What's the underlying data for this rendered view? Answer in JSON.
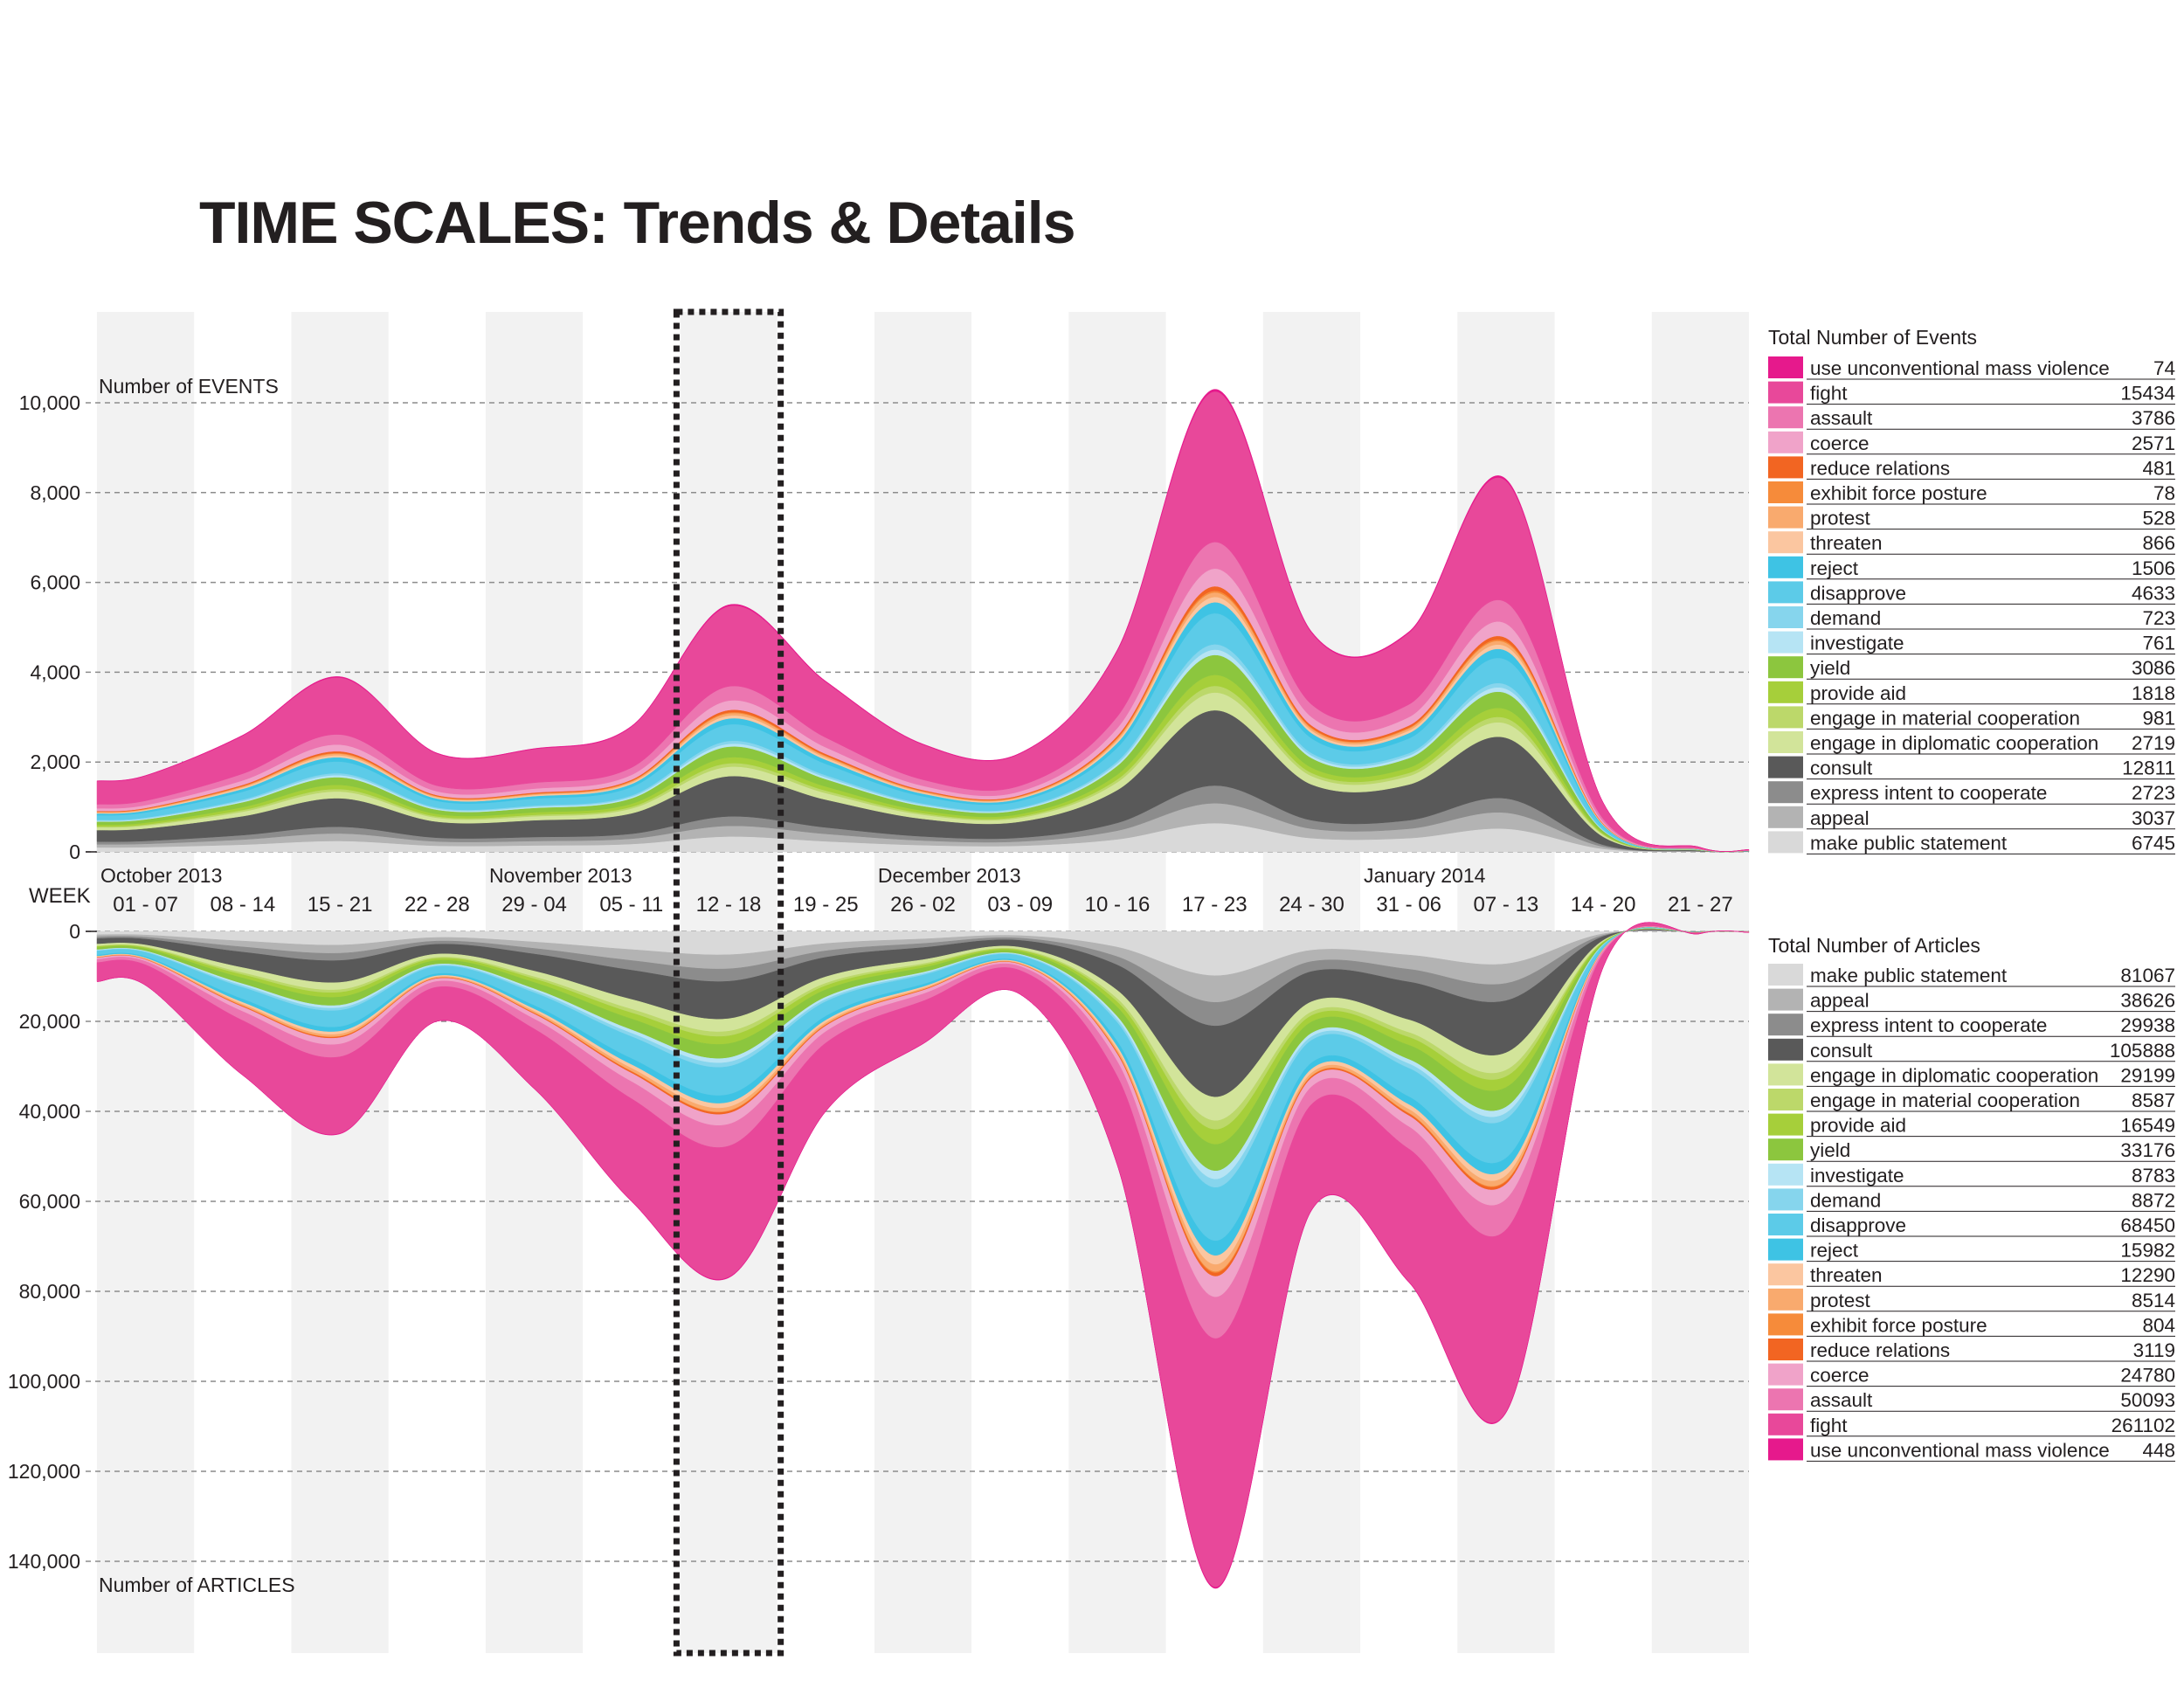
{
  "title": "TIME SCALES: Trends & Details",
  "chart_data": {
    "type": "area",
    "subtype": "streamgraph",
    "weeks": [
      "01 - 07",
      "08 - 14",
      "15 - 21",
      "22 - 28",
      "29 - 04",
      "05 - 11",
      "12 - 18",
      "19 - 25",
      "26 - 02",
      "03 - 09",
      "10 - 16",
      "17 - 23",
      "24 - 30",
      "31 - 06",
      "07 - 13",
      "14 - 20",
      "21 - 27"
    ],
    "months": [
      {
        "label": "October 2013",
        "week_index": 0
      },
      {
        "label": "November 2013",
        "week_index": 4
      },
      {
        "label": "December 2013",
        "week_index": 8
      },
      {
        "label": "January 2014",
        "week_index": 13
      }
    ],
    "week_label": "WEEK",
    "highlight_week_index": 6,
    "categories": [
      {
        "name": "use unconventional mass violence",
        "color": "#e6198c",
        "events_total": 74,
        "articles_total": 448,
        "events_share": 0.005,
        "articles_share": 0.002
      },
      {
        "name": "fight",
        "color": "#e8489a",
        "events_total": 15434,
        "articles_total": 261102,
        "events_share": 0.34,
        "articles_share": 0.42
      },
      {
        "name": "assault",
        "color": "#ec75b0",
        "events_total": 3786,
        "articles_total": 50093,
        "events_share": 0.06,
        "articles_share": 0.07
      },
      {
        "name": "coerce",
        "color": "#f0a3c9",
        "events_total": 2571,
        "articles_total": 24780,
        "events_share": 0.04,
        "articles_share": 0.035
      },
      {
        "name": "reduce relations",
        "color": "#f26522",
        "events_total": 481,
        "articles_total": 3119,
        "events_share": 0.01,
        "articles_share": 0.006
      },
      {
        "name": "exhibit force posture",
        "color": "#f68b3a",
        "events_total": 78,
        "articles_total": 804,
        "events_share": 0.004,
        "articles_share": 0.002
      },
      {
        "name": "protest",
        "color": "#f9aa6e",
        "events_total": 528,
        "articles_total": 8514,
        "events_share": 0.01,
        "articles_share": 0.012
      },
      {
        "name": "threaten",
        "color": "#fbc6a0",
        "events_total": 866,
        "articles_total": 12290,
        "events_share": 0.012,
        "articles_share": 0.015
      },
      {
        "name": "reject",
        "color": "#3ec3e4",
        "events_total": 1506,
        "articles_total": 15982,
        "events_share": 0.025,
        "articles_share": 0.025
      },
      {
        "name": "disapprove",
        "color": "#5ccbe8",
        "events_total": 4633,
        "articles_total": 68450,
        "events_share": 0.07,
        "articles_share": 0.09
      },
      {
        "name": "demand",
        "color": "#86d5ed",
        "events_total": 723,
        "articles_total": 8872,
        "events_share": 0.012,
        "articles_share": 0.014
      },
      {
        "name": "investigate",
        "color": "#b6e4f4",
        "events_total": 761,
        "articles_total": 8783,
        "events_share": 0.012,
        "articles_share": 0.014
      },
      {
        "name": "yield",
        "color": "#8cc63e",
        "events_total": 3086,
        "articles_total": 33176,
        "events_share": 0.045,
        "articles_share": 0.045
      },
      {
        "name": "provide aid",
        "color": "#a6cf3a",
        "events_total": 1818,
        "articles_total": 16549,
        "events_share": 0.025,
        "articles_share": 0.025
      },
      {
        "name": "engage in material cooperation",
        "color": "#bcd86a",
        "events_total": 981,
        "articles_total": 8587,
        "events_share": 0.015,
        "articles_share": 0.015
      },
      {
        "name": "engage in diplomatic cooperation",
        "color": "#d2e49a",
        "events_total": 2719,
        "articles_total": 29199,
        "events_share": 0.04,
        "articles_share": 0.04
      },
      {
        "name": "consult",
        "color": "#595959",
        "events_total": 12811,
        "articles_total": 105888,
        "events_share": 0.17,
        "articles_share": 0.12
      },
      {
        "name": "express intent to cooperate",
        "color": "#8c8c8c",
        "events_total": 2723,
        "articles_total": 29938,
        "events_share": 0.04,
        "articles_share": 0.04
      },
      {
        "name": "appeal",
        "color": "#b3b3b3",
        "events_total": 3037,
        "articles_total": 38626,
        "events_share": 0.045,
        "articles_share": 0.045
      },
      {
        "name": "make public statement",
        "color": "#d9d9d9",
        "events_total": 6745,
        "articles_total": 81067,
        "events_share": 0.065,
        "articles_share": 0.075
      }
    ],
    "events": {
      "title": "Total Number of Events",
      "axis_caption": "Number of EVENTS",
      "ylim": [
        0,
        12000
      ],
      "yticks": [
        "10,000",
        "8,000",
        "6,000",
        "4,000",
        "2,000",
        "0"
      ],
      "ytick_values": [
        10000,
        8000,
        6000,
        4000,
        2000,
        0
      ],
      "weekly_totals": [
        1700,
        2600,
        3900,
        2200,
        2300,
        2800,
        5500,
        3800,
        2400,
        2200,
        4500,
        10300,
        4900,
        4900,
        8300,
        1100,
        100
      ]
    },
    "articles": {
      "title": "Total Number of Articles",
      "axis_caption": "Number of ARTICLES",
      "ylim": [
        0,
        160000
      ],
      "yticks": [
        "0",
        "20,000",
        "40,000",
        "60,000",
        "80,000",
        "100,000",
        "120,000",
        "140,000"
      ],
      "ytick_values": [
        0,
        20000,
        40000,
        60000,
        80000,
        100000,
        120000,
        140000
      ],
      "weekly_totals": [
        12000,
        32000,
        45000,
        20000,
        35000,
        60000,
        77000,
        40000,
        25000,
        14000,
        52000,
        146000,
        62000,
        78000,
        107000,
        8000,
        500
      ]
    }
  }
}
